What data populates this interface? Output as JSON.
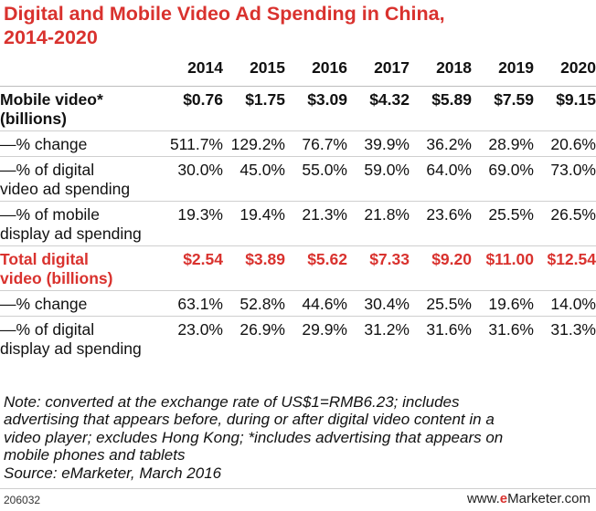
{
  "chart_data": {
    "type": "table",
    "title_lines": [
      "Digital and Mobile Video Ad Spending in China,",
      "2014-2020"
    ],
    "years": [
      "2014",
      "2015",
      "2016",
      "2017",
      "2018",
      "2019",
      "2020"
    ],
    "rows": [
      {
        "label_lines": [
          "Mobile video*",
          "(billions)"
        ],
        "style": "bold",
        "values": [
          "$0.76",
          "$1.75",
          "$3.09",
          "$4.32",
          "$5.89",
          "$7.59",
          "$9.15"
        ]
      },
      {
        "label_lines": [
          "—% change"
        ],
        "style": "normal",
        "values": [
          "511.7%",
          "129.2%",
          "76.7%",
          "39.9%",
          "36.2%",
          "28.9%",
          "20.6%"
        ]
      },
      {
        "label_lines": [
          "—% of digital",
          "video ad spending"
        ],
        "style": "normal",
        "values": [
          "30.0%",
          "45.0%",
          "55.0%",
          "59.0%",
          "64.0%",
          "69.0%",
          "73.0%"
        ]
      },
      {
        "label_lines": [
          "—% of mobile",
          "display ad spending"
        ],
        "style": "normal",
        "values": [
          "19.3%",
          "19.4%",
          "21.3%",
          "21.8%",
          "23.6%",
          "25.5%",
          "26.5%"
        ]
      },
      {
        "label_lines": [
          "Total digital",
          "video (billions)"
        ],
        "style": "red",
        "values": [
          "$2.54",
          "$3.89",
          "$5.62",
          "$7.33",
          "$9.20",
          "$11.00",
          "$12.54"
        ]
      },
      {
        "label_lines": [
          "—% change"
        ],
        "style": "normal",
        "values": [
          "63.1%",
          "52.8%",
          "44.6%",
          "30.4%",
          "25.5%",
          "19.6%",
          "14.0%"
        ]
      },
      {
        "label_lines": [
          "—% of digital",
          "display ad spending"
        ],
        "style": "normal",
        "values": [
          "23.0%",
          "26.9%",
          "29.9%",
          "31.2%",
          "31.6%",
          "31.6%",
          "31.3%"
        ]
      }
    ],
    "note_lines": [
      "Note: converted at the exchange rate of US$1=RMB6.23; includes",
      "advertising that appears before, during or after digital video content in a",
      "video player; excludes Hong Kong; *includes advertising that appears on",
      "mobile phones and tablets",
      "Source: eMarketer, March 2016"
    ],
    "chart_id": "206032",
    "brand": {
      "prefix": "www.",
      "mark": "e",
      "rest": "Marketer.com"
    },
    "colors": {
      "accent": "#d9322e",
      "text": "#111111",
      "rule": "#cfcfcf"
    }
  }
}
